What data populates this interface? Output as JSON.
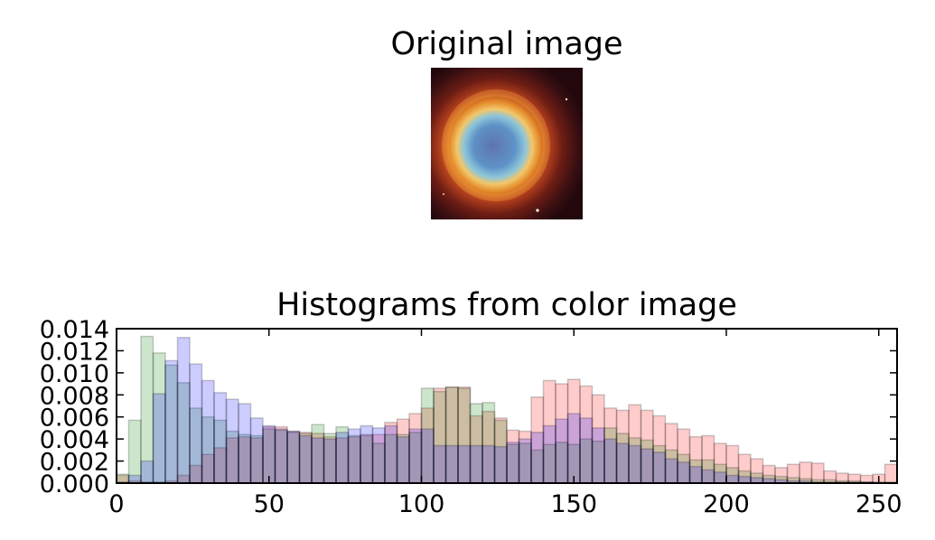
{
  "figure": {
    "image_title": "Original image",
    "histogram_title": "Histograms from color image"
  },
  "chart_data": {
    "type": "bar",
    "title": "Histograms from color image",
    "xlabel": "",
    "ylabel": "",
    "xlim": [
      0,
      256
    ],
    "ylim": [
      0,
      0.014
    ],
    "grid": false,
    "legend": "none",
    "bin_width": 4,
    "bin_starts": [
      0,
      4,
      8,
      12,
      16,
      20,
      24,
      28,
      32,
      36,
      40,
      44,
      48,
      52,
      56,
      60,
      64,
      68,
      72,
      76,
      80,
      84,
      88,
      92,
      96,
      100,
      104,
      108,
      112,
      116,
      120,
      124,
      128,
      132,
      136,
      140,
      144,
      148,
      152,
      156,
      160,
      164,
      168,
      172,
      176,
      180,
      184,
      188,
      192,
      196,
      200,
      204,
      208,
      212,
      216,
      220,
      224,
      228,
      232,
      236,
      240,
      244,
      248,
      252
    ],
    "x_ticks": [
      0,
      50,
      100,
      150,
      200,
      250
    ],
    "y_ticks": [
      "0.000",
      "0.002",
      "0.004",
      "0.006",
      "0.008",
      "0.010",
      "0.012",
      "0.014"
    ],
    "series": [
      {
        "color": "#ff0000",
        "values": [
          0.0007,
          0.0002,
          0.0001,
          0.0001,
          0.0002,
          0.0007,
          0.0016,
          0.0026,
          0.0032,
          0.0041,
          0.0042,
          0.0041,
          0.0051,
          0.0051,
          0.0047,
          0.0046,
          0.0045,
          0.0042,
          0.0041,
          0.0042,
          0.0044,
          0.0044,
          0.0055,
          0.0058,
          0.0063,
          0.0068,
          0.0086,
          0.0087,
          0.0087,
          0.0061,
          0.0065,
          0.0059,
          0.0048,
          0.0047,
          0.0078,
          0.0093,
          0.009,
          0.0094,
          0.0088,
          0.008,
          0.0068,
          0.0066,
          0.0071,
          0.0066,
          0.0061,
          0.0054,
          0.0049,
          0.0042,
          0.0043,
          0.0036,
          0.0034,
          0.0026,
          0.0022,
          0.0016,
          0.0014,
          0.0017,
          0.0019,
          0.0018,
          0.0011,
          0.0009,
          0.0008,
          0.0007,
          0.0008,
          0.0017
        ]
      },
      {
        "color": "#008000",
        "values": [
          0.0008,
          0.0057,
          0.0133,
          0.0118,
          0.0107,
          0.0091,
          0.0068,
          0.006,
          0.0057,
          0.0047,
          0.0044,
          0.0043,
          0.0049,
          0.0048,
          0.0046,
          0.0045,
          0.0053,
          0.0045,
          0.0051,
          0.0043,
          0.0043,
          0.0036,
          0.0044,
          0.0044,
          0.0046,
          0.0086,
          0.0083,
          0.0087,
          0.0086,
          0.0072,
          0.0073,
          0.0057,
          0.0035,
          0.0036,
          0.003,
          0.0035,
          0.0037,
          0.0035,
          0.004,
          0.0038,
          0.005,
          0.0045,
          0.0041,
          0.0039,
          0.0034,
          0.003,
          0.0026,
          0.0021,
          0.0021,
          0.0017,
          0.0014,
          0.0011,
          0.0009,
          0.0007,
          0.0006,
          0.0005,
          0.0004,
          0.0003,
          0.0003,
          0.0002,
          0.0002,
          0.0001,
          0.0001,
          0.0001
        ]
      },
      {
        "color": "#0000ff",
        "values": [
          0.0001,
          0.0007,
          0.002,
          0.0081,
          0.0111,
          0.0132,
          0.0108,
          0.0093,
          0.0082,
          0.0076,
          0.0072,
          0.0059,
          0.0052,
          0.0049,
          0.0047,
          0.0043,
          0.0041,
          0.004,
          0.0046,
          0.0049,
          0.0052,
          0.005,
          0.0052,
          0.0042,
          0.0049,
          0.0049,
          0.0034,
          0.0034,
          0.0034,
          0.0034,
          0.0034,
          0.0033,
          0.0037,
          0.004,
          0.0046,
          0.0052,
          0.0058,
          0.0063,
          0.0059,
          0.005,
          0.004,
          0.0036,
          0.0034,
          0.0031,
          0.0028,
          0.0022,
          0.0019,
          0.0015,
          0.0012,
          0.001,
          0.0007,
          0.0006,
          0.0005,
          0.0004,
          0.0003,
          0.0002,
          0.0002,
          0.0001,
          0.0001,
          0.0001,
          0.0001,
          0.0001,
          0.0,
          0.0
        ]
      }
    ]
  }
}
